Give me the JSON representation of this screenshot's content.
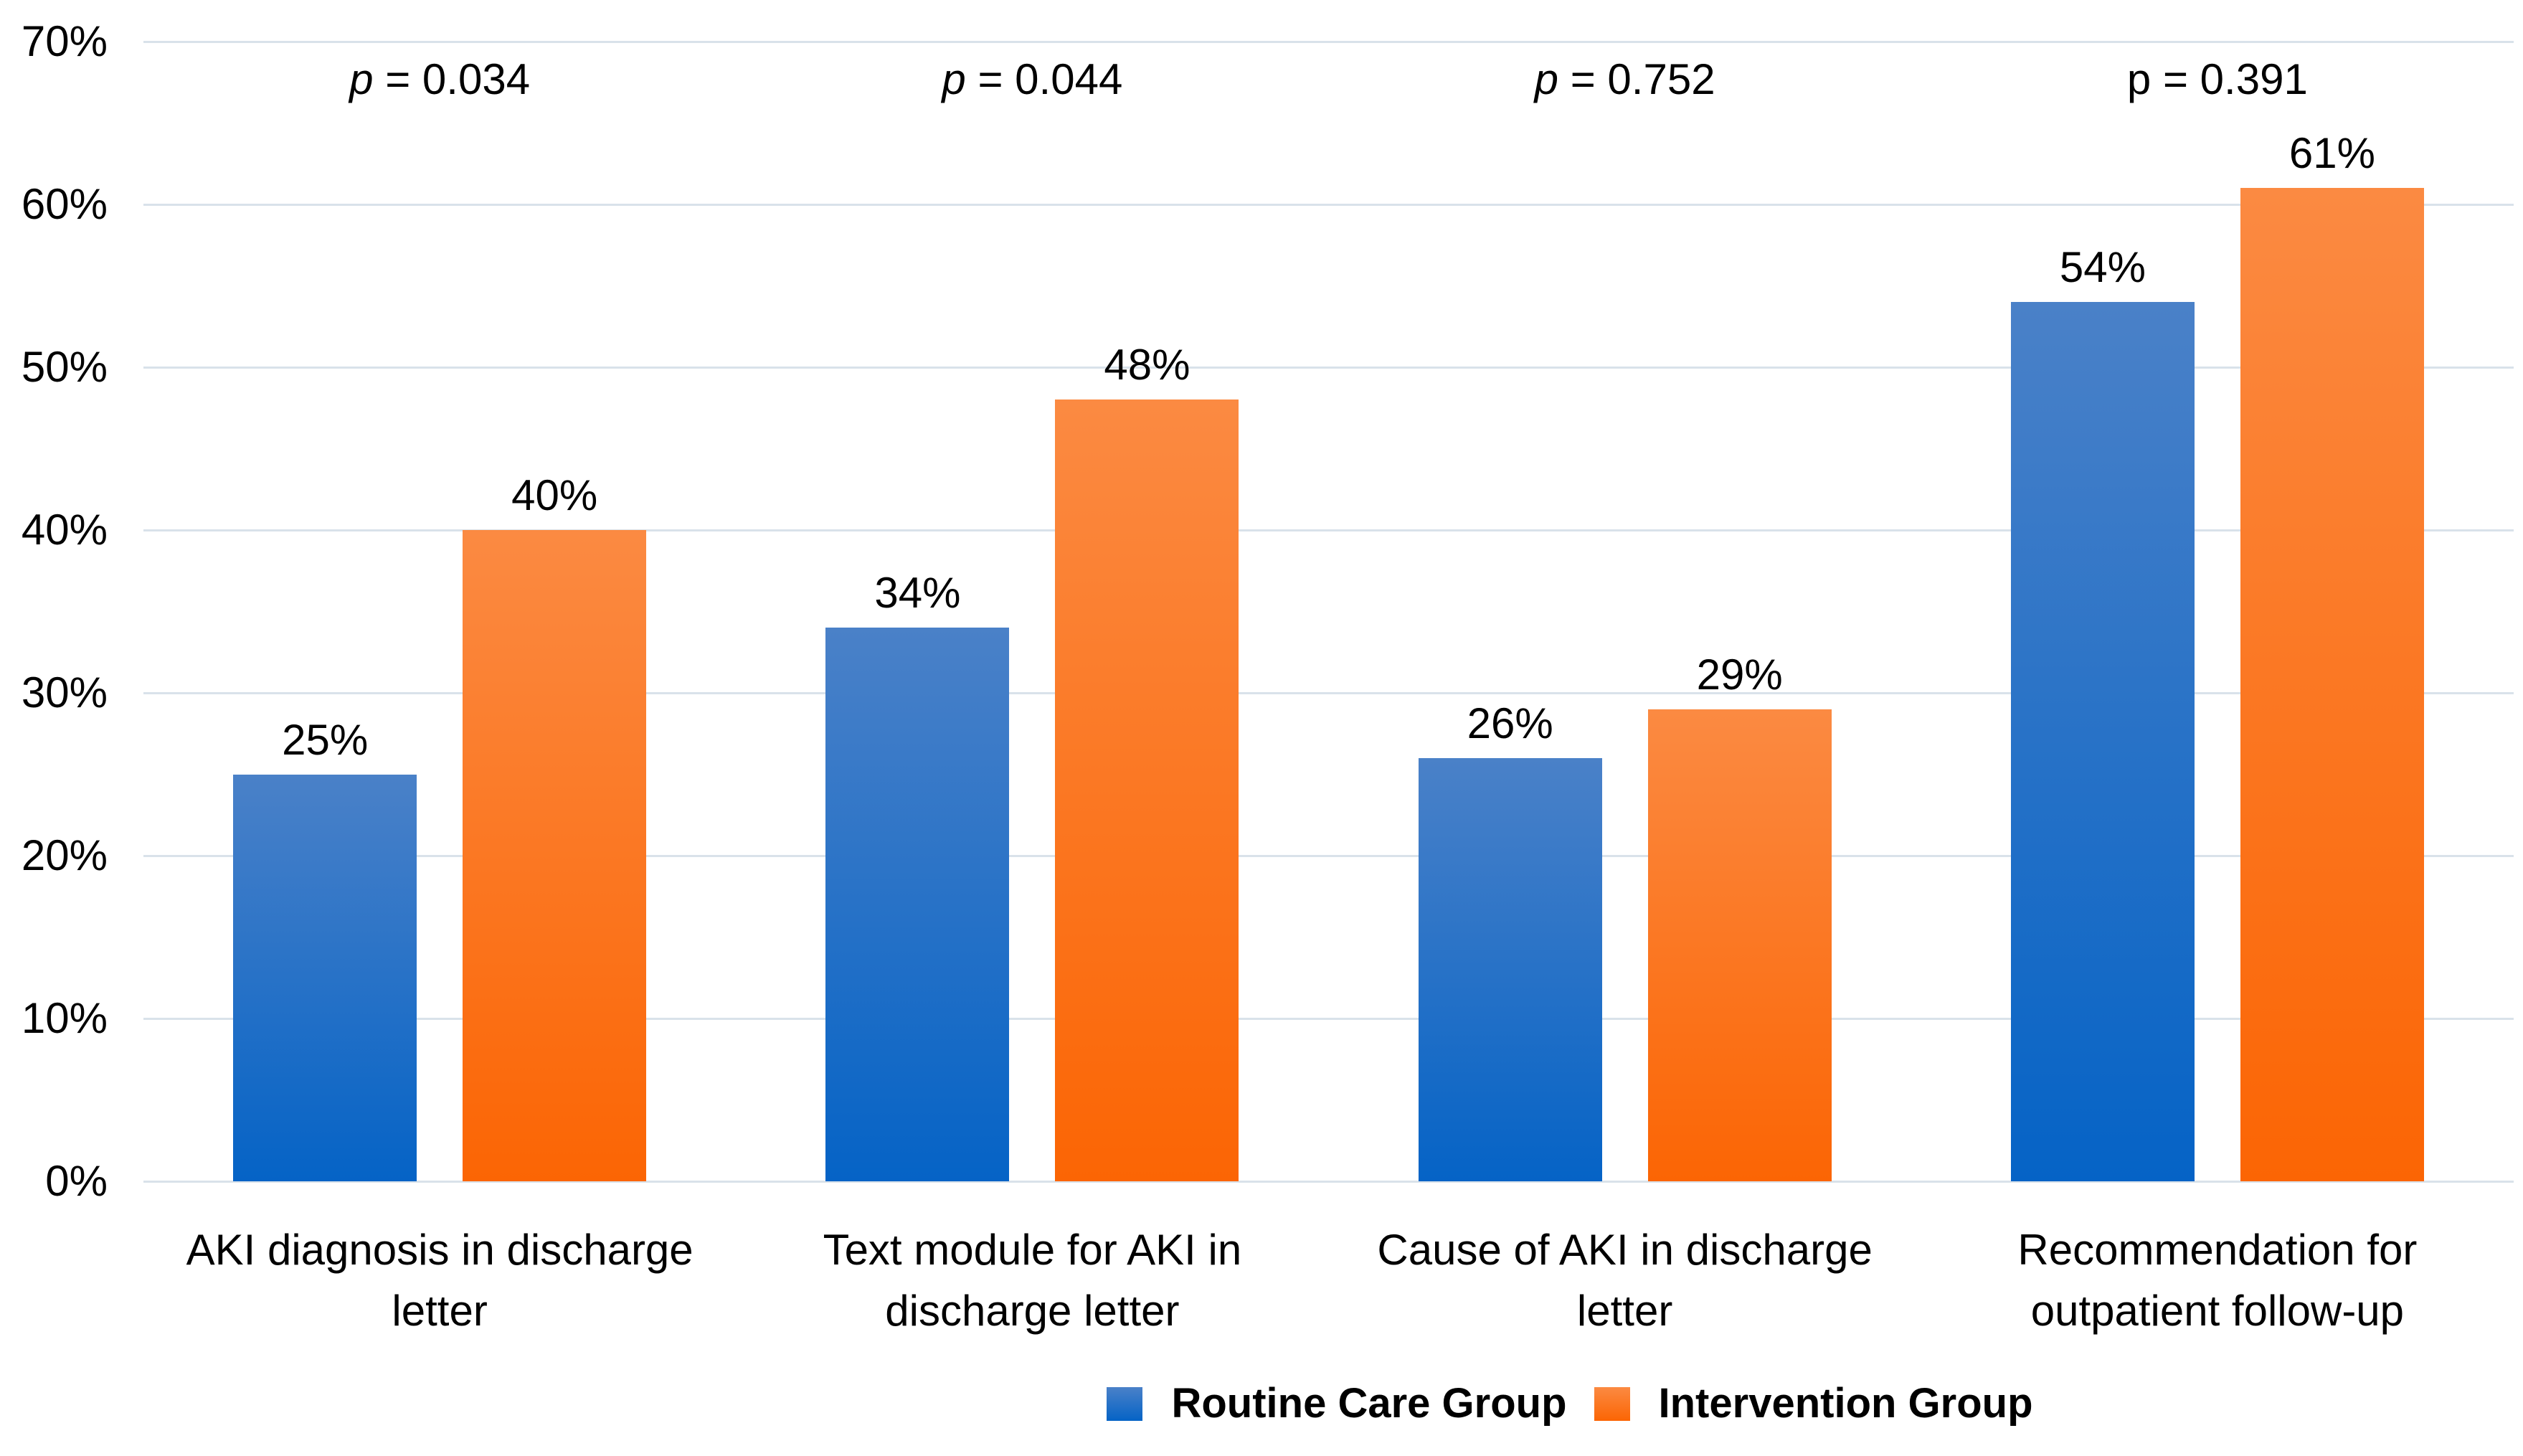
{
  "chart_data": {
    "type": "bar",
    "title": "",
    "categories": [
      "AKI diagnosis in discharge letter",
      "Text module for AKI in discharge letter",
      "Cause of AKI in discharge letter",
      "Recommendation for outpatient follow-up"
    ],
    "series": [
      {
        "name": "Routine Care Group",
        "values": [
          25,
          34,
          26,
          54
        ],
        "labels": [
          "25%",
          "34%",
          "26%",
          "54%"
        ],
        "color_top": "#4A81C8",
        "color_bottom": "#0563C6"
      },
      {
        "name": "Intervention Group",
        "values": [
          40,
          48,
          29,
          61
        ],
        "labels": [
          "40%",
          "48%",
          "29%",
          "61%"
        ],
        "color_top": "#FB8A42",
        "color_bottom": "#FB6504"
      }
    ],
    "p_annotations": [
      {
        "p_char": "p",
        "rest": " = 0.034",
        "italic_p": true
      },
      {
        "p_char": "p",
        "rest": " = 0.044",
        "italic_p": true
      },
      {
        "p_char": "p",
        "rest": " = 0.752",
        "italic_p": true
      },
      {
        "p_char": "p",
        "rest": " = 0.391",
        "italic_p": false
      }
    ],
    "y_axis": {
      "min": 0,
      "max": 70,
      "ticks": [
        {
          "label": "0%",
          "value": 0
        },
        {
          "label": "10%",
          "value": 10
        },
        {
          "label": "20%",
          "value": 20
        },
        {
          "label": "30%",
          "value": 30
        },
        {
          "label": "40%",
          "value": 40
        },
        {
          "label": "50%",
          "value": 50
        },
        {
          "label": "60%",
          "value": 60
        },
        {
          "label": "70%",
          "value": 70
        }
      ]
    },
    "grid": true,
    "legend_position": "bottom"
  },
  "colors": {
    "gridline": "#D9E2EA",
    "text": "#000000",
    "background": "#FFFFFF"
  }
}
